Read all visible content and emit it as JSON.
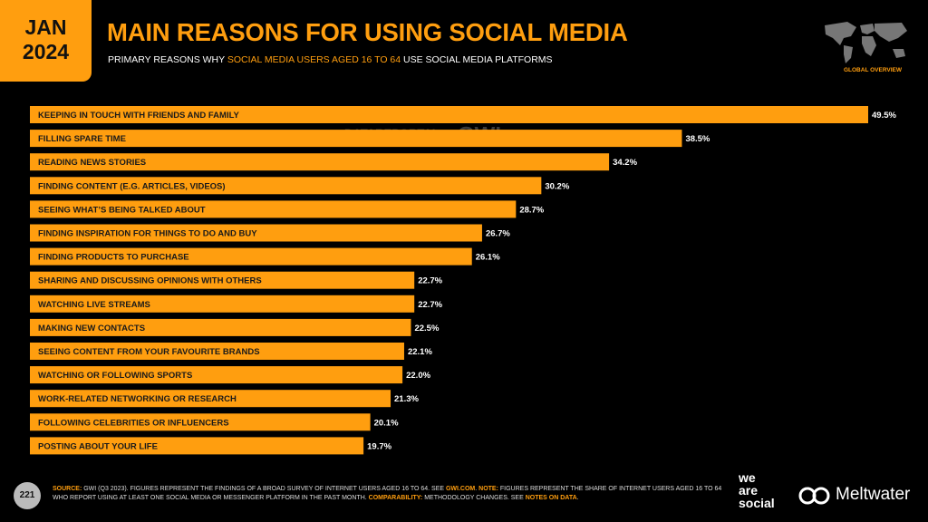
{
  "header": {
    "date": [
      "JAN",
      "2024"
    ],
    "title": "MAIN REASONS FOR USING SOCIAL MEDIA",
    "subtitle": [
      "PRIMARY REASONS WHY ",
      "SOCIAL MEDIA USERS AGED 16 TO 64",
      " USE SOCIAL MEDIA PLATFORMS"
    ],
    "section": "GLOBAL OVERVIEW"
  },
  "chart_data": {
    "type": "bar",
    "orientation": "horizontal",
    "color": "#ff9e0f",
    "categories": [
      "KEEPING IN TOUCH WITH FRIENDS AND FAMILY",
      "FILLING SPARE TIME",
      "READING NEWS STORIES",
      "FINDING CONTENT (E.G. ARTICLES, VIDEOS)",
      "SEEING WHAT’S BEING TALKED ABOUT",
      "FINDING INSPIRATION FOR THINGS TO DO AND BUY",
      "FINDING PRODUCTS TO PURCHASE",
      "SHARING AND DISCUSSING OPINIONS WITH OTHERS",
      "WATCHING LIVE STREAMS",
      "MAKING NEW CONTACTS",
      "SEEING CONTENT FROM YOUR FAVOURITE BRANDS",
      "WATCHING OR FOLLOWING SPORTS",
      "WORK-RELATED NETWORKING OR RESEARCH",
      "FOLLOWING CELEBRITIES OR INFLUENCERS",
      "POSTING ABOUT YOUR LIFE"
    ],
    "values": [
      49.5,
      38.5,
      34.2,
      30.2,
      28.7,
      26.7,
      26.1,
      22.7,
      22.7,
      22.5,
      22.1,
      22.0,
      21.3,
      20.1,
      19.7
    ],
    "value_labels": [
      "49.5%",
      "38.5%",
      "34.2%",
      "30.2%",
      "28.7%",
      "26.7%",
      "26.1%",
      "22.7%",
      "22.7%",
      "22.5%",
      "22.1%",
      "22.0%",
      "21.3%",
      "20.1%",
      "19.7%"
    ]
  },
  "watermark": [
    "DATAREPORTAL",
    "GWI."
  ],
  "footer": {
    "page": "221",
    "source": [
      "SOURCE:",
      " GWI (Q3 2023). FIGURES REPRESENT THE FINDINGS OF A BROAD SURVEY OF INTERNET USERS AGED 16 TO 64. SEE ",
      "GWI.COM",
      ". ",
      "NOTE:",
      " FIGURES REPRESENT THE SHARE OF INTERNET USERS AGED 16 TO 64 WHO REPORT USING AT LEAST ONE SOCIAL MEDIA OR MESSENGER PLATFORM IN THE PAST MONTH. ",
      "COMPARABILITY:",
      " METHODOLOGY CHANGES. SEE ",
      "NOTES ON DATA",
      "."
    ],
    "brand_stack": [
      "we",
      "are",
      "social"
    ],
    "brand": "Meltwater"
  }
}
